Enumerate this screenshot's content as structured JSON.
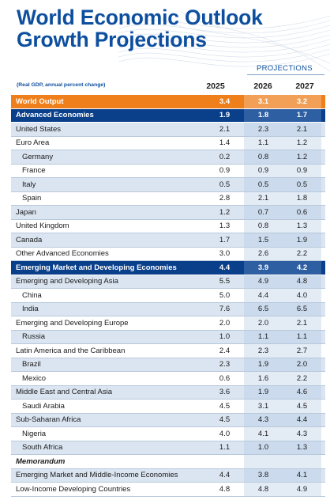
{
  "title_line1": "World Economic Outlook",
  "title_line2": "Growth Projections",
  "projections_label": "PROJECTIONS",
  "units_label": "(Real GDP, annual percent change)",
  "years": [
    "2025",
    "2026",
    "2027"
  ],
  "colors": {
    "title": "#0d4f9e",
    "world_row": "#ee7f1b",
    "aggregate_row": "#0a3f8a",
    "alt_row": "#dbe5f1"
  },
  "rows": [
    {
      "label": "World Output",
      "type": "world",
      "v": [
        "3.4",
        "3.1",
        "3.2"
      ]
    },
    {
      "label": "Advanced Economies",
      "type": "agg",
      "v": [
        "1.9",
        "1.8",
        "1.7"
      ]
    },
    {
      "label": "United States",
      "type": "alt",
      "v": [
        "2.1",
        "2.3",
        "2.1"
      ]
    },
    {
      "label": "Euro Area",
      "type": "plain",
      "v": [
        "1.4",
        "1.1",
        "1.2"
      ]
    },
    {
      "label": "Germany",
      "type": "alt",
      "indent": true,
      "v": [
        "0.2",
        "0.8",
        "1.2"
      ]
    },
    {
      "label": "France",
      "type": "plain",
      "indent": true,
      "v": [
        "0.9",
        "0.9",
        "0.9"
      ]
    },
    {
      "label": "Italy",
      "type": "alt",
      "indent": true,
      "v": [
        "0.5",
        "0.5",
        "0.5"
      ]
    },
    {
      "label": "Spain",
      "type": "plain",
      "indent": true,
      "v": [
        "2.8",
        "2.1",
        "1.8"
      ]
    },
    {
      "label": "Japan",
      "type": "alt",
      "v": [
        "1.2",
        "0.7",
        "0.6"
      ]
    },
    {
      "label": "United Kingdom",
      "type": "plain",
      "v": [
        "1.3",
        "0.8",
        "1.3"
      ]
    },
    {
      "label": "Canada",
      "type": "alt",
      "v": [
        "1.7",
        "1.5",
        "1.9"
      ]
    },
    {
      "label": "Other Advanced Economies",
      "type": "plain",
      "v": [
        "3.0",
        "2.6",
        "2.2"
      ]
    },
    {
      "label": "Emerging Market and Developing Economies",
      "type": "agg",
      "v": [
        "4.4",
        "3.9",
        "4.2"
      ]
    },
    {
      "label": "Emerging and Developing Asia",
      "type": "alt",
      "v": [
        "5.5",
        "4.9",
        "4.8"
      ]
    },
    {
      "label": "China",
      "type": "plain",
      "indent": true,
      "v": [
        "5.0",
        "4.4",
        "4.0"
      ]
    },
    {
      "label": "India",
      "type": "alt",
      "indent": true,
      "v": [
        "7.6",
        "6.5",
        "6.5"
      ]
    },
    {
      "label": "Emerging and Developing Europe",
      "type": "plain",
      "v": [
        "2.0",
        "2.0",
        "2.1"
      ]
    },
    {
      "label": "Russia",
      "type": "alt",
      "indent": true,
      "v": [
        "1.0",
        "1.1",
        "1.1"
      ]
    },
    {
      "label": "Latin America and the Caribbean",
      "type": "plain",
      "v": [
        "2.4",
        "2.3",
        "2.7"
      ]
    },
    {
      "label": "Brazil",
      "type": "alt",
      "indent": true,
      "v": [
        "2.3",
        "1.9",
        "2.0"
      ]
    },
    {
      "label": "Mexico",
      "type": "plain",
      "indent": true,
      "v": [
        "0.6",
        "1.6",
        "2.2"
      ]
    },
    {
      "label": "Middle East and Central Asia",
      "type": "alt",
      "v": [
        "3.6",
        "1.9",
        "4.6"
      ]
    },
    {
      "label": "Saudi Arabia",
      "type": "plain",
      "indent": true,
      "v": [
        "4.5",
        "3.1",
        "4.5"
      ]
    },
    {
      "label": "Sub-Saharan Africa",
      "type": "alt",
      "v": [
        "4.5",
        "4.3",
        "4.4"
      ]
    },
    {
      "label": "Nigeria",
      "type": "plain",
      "indent": true,
      "v": [
        "4.0",
        "4.1",
        "4.3"
      ]
    },
    {
      "label": "South Africa",
      "type": "alt",
      "indent": true,
      "v": [
        "1.1",
        "1.0",
        "1.3"
      ]
    },
    {
      "label": "Memorandum",
      "type": "memo",
      "v": [
        "",
        "",
        ""
      ]
    },
    {
      "label": "Emerging Market and Middle-Income Economies",
      "type": "alt",
      "v": [
        "4.4",
        "3.8",
        "4.1"
      ]
    },
    {
      "label": "Low-Income Developing Countries",
      "type": "plain",
      "v": [
        "4.8",
        "4.8",
        "4.9"
      ]
    }
  ]
}
